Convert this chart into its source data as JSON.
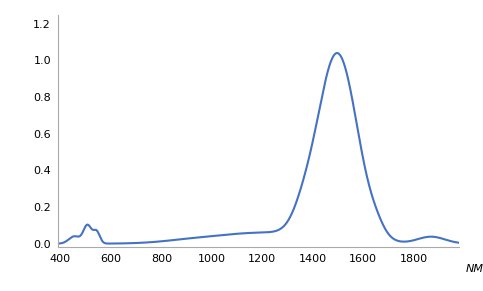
{
  "line_color": "#4472c4",
  "line_width": 1.5,
  "background_color": "#ffffff",
  "xlim": [
    390,
    1980
  ],
  "ylim": [
    -0.02,
    1.25
  ],
  "xticks": [
    400,
    600,
    800,
    1000,
    1200,
    1400,
    1600,
    1800
  ],
  "yticks": [
    0.0,
    0.2,
    0.4,
    0.6,
    0.8,
    1.0,
    1.2
  ],
  "xlabel": "NM",
  "xlabel_fontsize": 8,
  "tick_fontsize": 8,
  "border_color": "#aaaaaa"
}
